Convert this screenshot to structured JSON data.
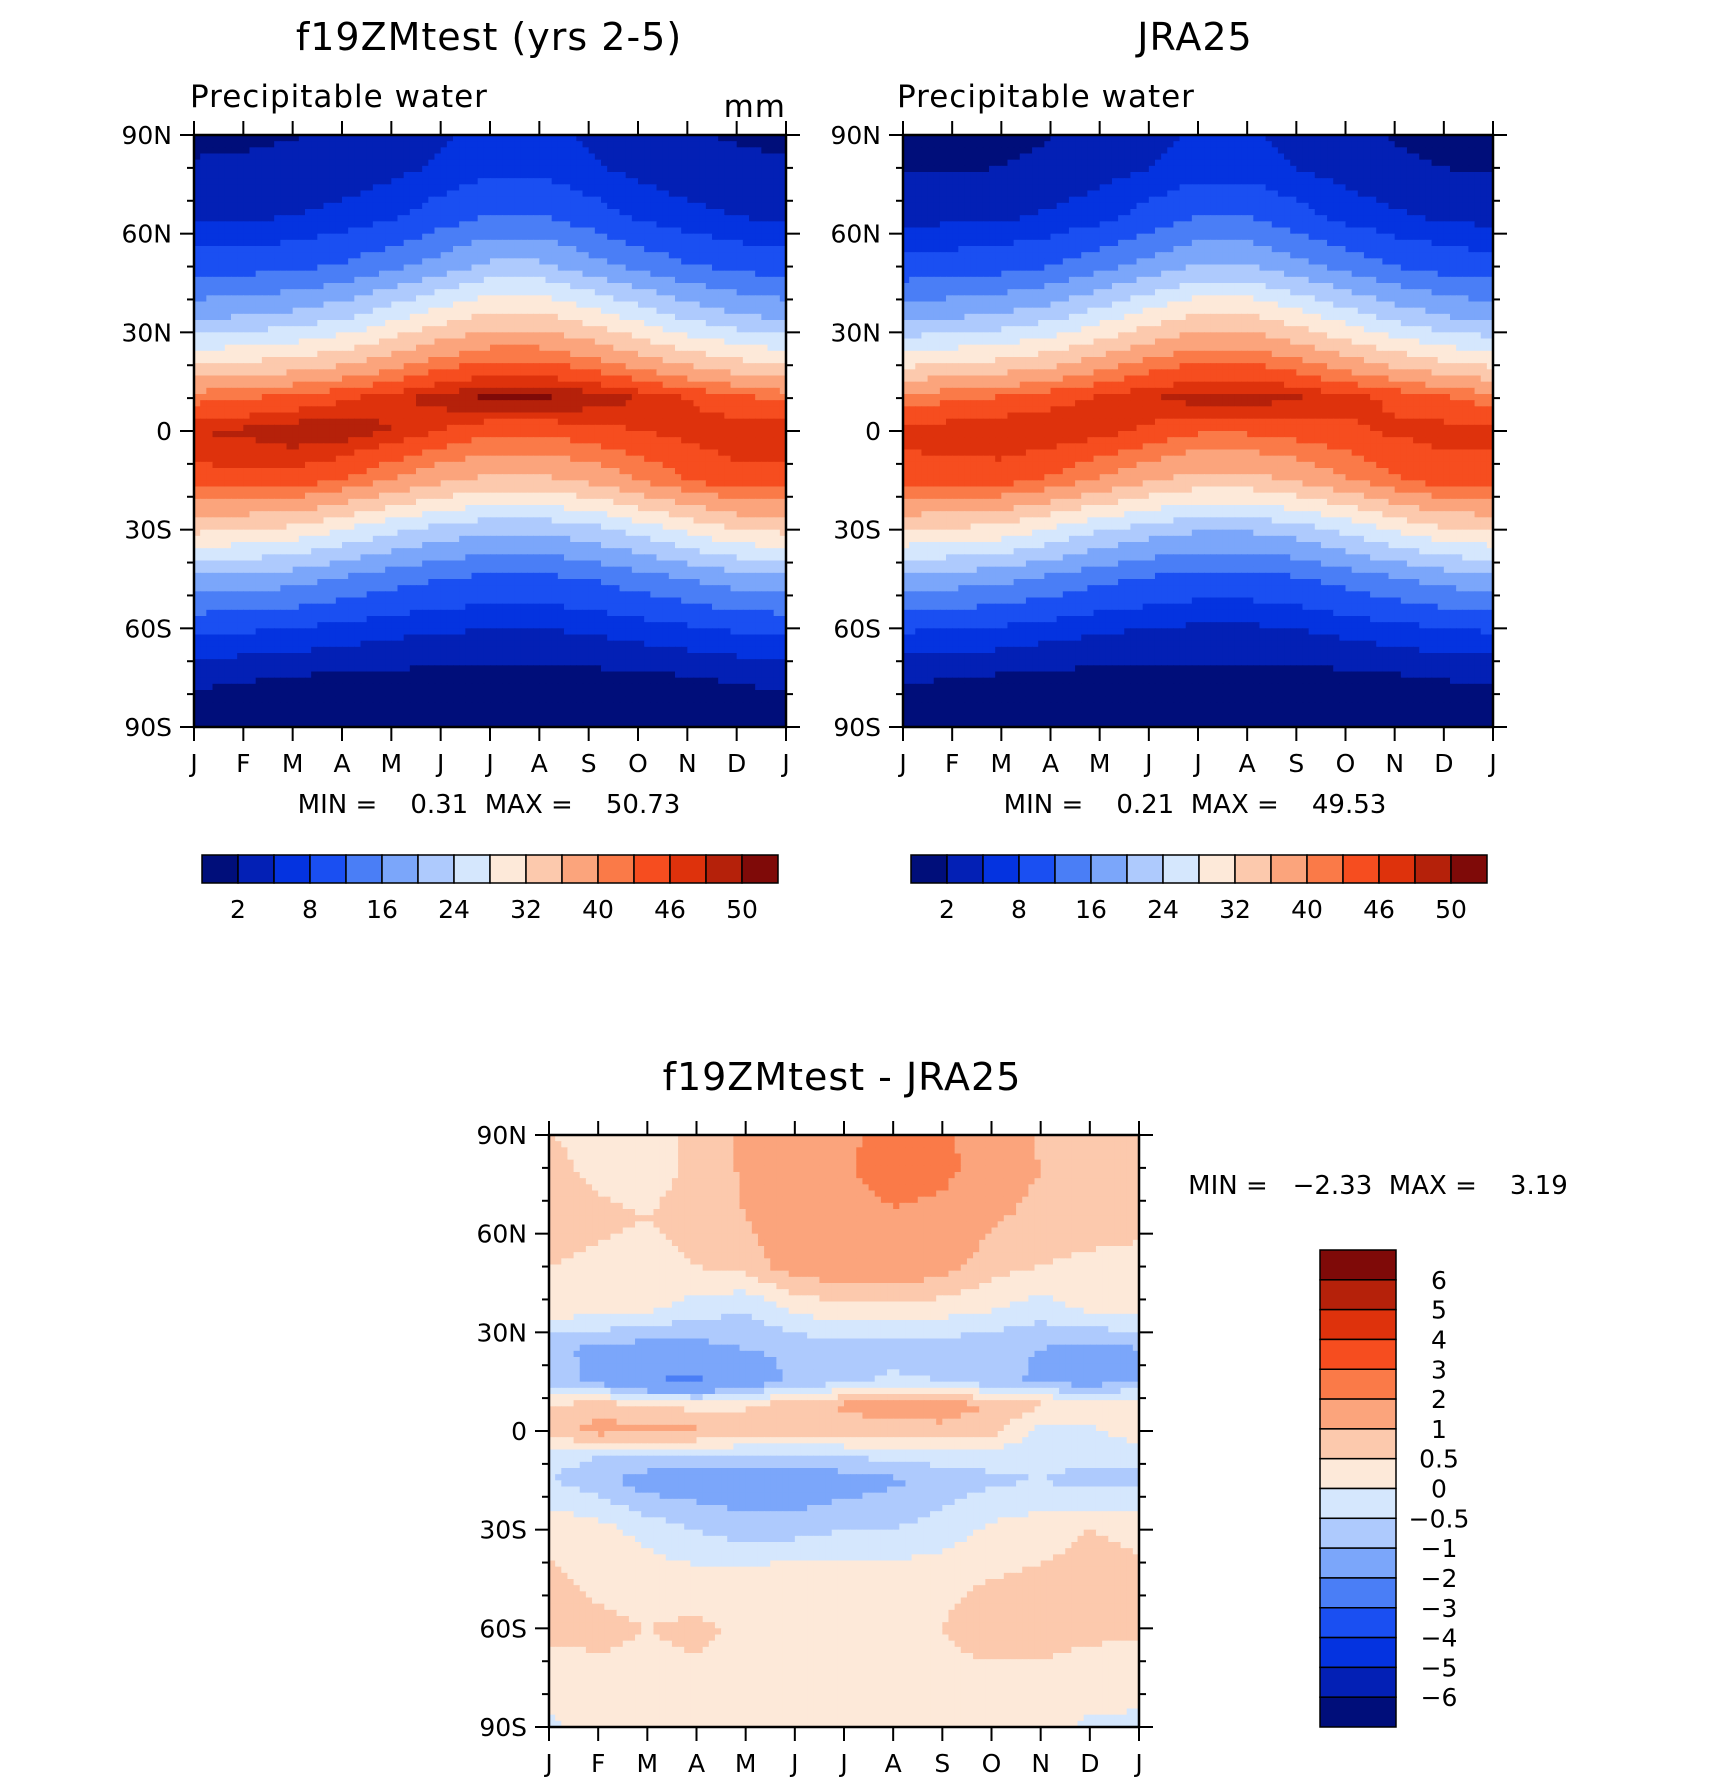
{
  "colors": {
    "abs_levels": [
      "#000e7a",
      "#0320b5",
      "#0433e0",
      "#1a4ff2",
      "#4a7ef6",
      "#7ba6fa",
      "#aecafd",
      "#d5e7fd",
      "#fde9d9",
      "#fcc9ad",
      "#fba47c",
      "#fa7a48",
      "#f64d1f",
      "#de320c",
      "#b5210a",
      "#7f0a08"
    ],
    "diff_levels": [
      "#000e7a",
      "#0320b5",
      "#0433e0",
      "#1a4ff2",
      "#4a7ef6",
      "#7ba6fa",
      "#aecafd",
      "#d5e7fd",
      "#fde9d9",
      "#fcc9ad",
      "#fba47c",
      "#fa7a48",
      "#f64d1f",
      "#de320c",
      "#b5210a",
      "#7f0a08"
    ]
  },
  "chart_data": [
    {
      "type": "heatmap",
      "title": "f19ZMtest (yrs 2-5)",
      "subtitle": "Precipitable water",
      "units": "mm",
      "x_tick_labels": [
        "J",
        "F",
        "M",
        "A",
        "M",
        "J",
        "J",
        "A",
        "S",
        "O",
        "N",
        "D",
        "J"
      ],
      "y_tick_labels": [
        "90N",
        "60N",
        "30N",
        "0",
        "30S",
        "60S",
        "90S"
      ],
      "ylim": [
        -90,
        90
      ],
      "min_label": "MIN =",
      "min_value": "0.31",
      "max_label": "MAX =",
      "max_value": "50.73",
      "stat_text": "MIN =    0.31  MAX =    50.73",
      "colorbar_ticks": [
        "2",
        "8",
        "16",
        "24",
        "32",
        "40",
        "46",
        "50"
      ],
      "field": {
        "x_months": [
          0,
          1,
          2,
          3,
          4,
          5,
          6,
          7,
          8,
          9,
          10,
          11,
          12
        ],
        "lat": [
          -90,
          -75,
          -60,
          -45,
          -30,
          -15,
          0,
          10,
          20,
          35,
          50,
          65,
          80,
          90
        ],
        "values": [
          [
            0.4,
            0.4,
            0.4,
            0.4,
            0.3,
            0.3,
            0.3,
            0.3,
            0.3,
            0.4,
            0.4,
            0.4,
            0.4
          ],
          [
            2.5,
            2.2,
            1.8,
            1.4,
            1.2,
            1.0,
            1.0,
            1.0,
            1.1,
            1.3,
            1.8,
            2.3,
            2.5
          ],
          [
            9,
            8.5,
            8,
            7,
            6,
            5.5,
            5,
            5,
            5.5,
            6.5,
            7.5,
            8.5,
            9
          ],
          [
            19,
            18.5,
            17.5,
            15.5,
            13.5,
            12,
            11,
            11,
            12,
            14,
            16,
            18,
            19
          ],
          [
            33,
            32,
            31,
            28,
            25,
            22.5,
            21,
            21,
            22.5,
            25.5,
            29,
            32,
            33
          ],
          [
            45,
            45,
            45,
            43,
            40,
            37,
            35,
            35,
            37,
            40,
            43,
            45,
            45
          ],
          [
            48,
            48.5,
            49.5,
            49.5,
            48,
            46,
            44,
            44,
            45,
            46,
            47,
            47.5,
            48
          ],
          [
            42,
            43,
            44,
            45.5,
            47.5,
            49,
            50.5,
            50.5,
            49.5,
            48,
            46,
            44,
            42
          ],
          [
            32,
            33,
            34,
            36,
            39,
            42,
            44,
            44,
            42,
            39,
            36,
            33.5,
            32
          ],
          [
            19,
            20,
            21,
            23,
            26.5,
            30,
            33,
            33,
            30,
            26.5,
            23,
            20.5,
            19
          ],
          [
            10,
            10.5,
            11,
            12.5,
            15,
            18,
            21,
            21,
            18,
            15,
            12.5,
            11,
            10
          ],
          [
            4.5,
            4.7,
            5,
            6,
            7.5,
            10,
            12.5,
            12.5,
            10,
            7.5,
            6,
            5,
            4.5
          ],
          [
            2.2,
            2.3,
            2.5,
            3,
            4,
            5.5,
            7,
            7,
            5.5,
            4,
            3,
            2.5,
            2.2
          ],
          [
            1.6,
            1.7,
            1.9,
            2.3,
            3,
            4.5,
            6,
            6,
            4.5,
            3,
            2.2,
            1.8,
            1.6
          ]
        ]
      }
    },
    {
      "type": "heatmap",
      "title": "JRA25",
      "subtitle": "Precipitable water",
      "x_tick_labels": [
        "J",
        "F",
        "M",
        "A",
        "M",
        "J",
        "J",
        "A",
        "S",
        "O",
        "N",
        "D",
        "J"
      ],
      "y_tick_labels": [
        "90N",
        "60N",
        "30N",
        "0",
        "30S",
        "60S",
        "90S"
      ],
      "ylim": [
        -90,
        90
      ],
      "min_label": "MIN =",
      "min_value": "0.21",
      "max_label": "MAX =",
      "max_value": "49.53",
      "stat_text": "MIN =    0.21  MAX =    49.53",
      "colorbar_ticks": [
        "2",
        "8",
        "16",
        "24",
        "32",
        "40",
        "46",
        "50"
      ],
      "field": {
        "x_months": [
          0,
          1,
          2,
          3,
          4,
          5,
          6,
          7,
          8,
          9,
          10,
          11,
          12
        ],
        "lat": [
          -90,
          -75,
          -60,
          -45,
          -30,
          -15,
          0,
          10,
          20,
          35,
          50,
          65,
          80,
          90
        ],
        "values": [
          [
            0.3,
            0.3,
            0.3,
            0.3,
            0.2,
            0.2,
            0.2,
            0.2,
            0.2,
            0.3,
            0.3,
            0.3,
            0.3
          ],
          [
            2.3,
            2.0,
            1.6,
            1.2,
            1.0,
            0.9,
            0.9,
            0.9,
            1.0,
            1.2,
            1.6,
            2.1,
            2.3
          ],
          [
            8.5,
            8,
            7.5,
            6.5,
            5.5,
            5,
            4.5,
            4.5,
            5,
            6,
            7,
            8,
            8.5
          ],
          [
            18.5,
            18,
            17,
            15,
            13,
            11.5,
            10.5,
            10.5,
            11.5,
            13.5,
            15.5,
            17.5,
            18.5
          ],
          [
            32.5,
            31.5,
            30.5,
            27.5,
            24.5,
            22,
            20.5,
            20.5,
            22,
            25,
            28.5,
            31.5,
            32.5
          ],
          [
            44.5,
            44.5,
            44.5,
            42.5,
            39.5,
            36.5,
            34.5,
            34.5,
            36.5,
            39.5,
            42.5,
            44.5,
            44.5
          ],
          [
            47,
            47.5,
            48,
            48,
            47,
            45.5,
            43.5,
            43.5,
            44.5,
            45.5,
            46.5,
            47,
            47
          ],
          [
            41.5,
            42.5,
            43.5,
            45,
            46.5,
            48,
            49,
            49,
            48.5,
            47,
            45.5,
            43.5,
            41.5
          ],
          [
            31.5,
            32.5,
            33.5,
            35.5,
            38.5,
            41.5,
            43.5,
            43.5,
            41.5,
            38.5,
            35.5,
            33,
            31.5
          ],
          [
            18.5,
            19.5,
            20.5,
            22.5,
            26,
            29.5,
            32.5,
            32.5,
            29.5,
            26,
            22.5,
            20,
            18.5
          ],
          [
            9.5,
            10,
            10.5,
            12,
            14.5,
            17.5,
            20.5,
            20.5,
            17.5,
            14.5,
            12,
            10.5,
            9.5
          ],
          [
            4,
            4.2,
            4.5,
            5.5,
            7,
            9.5,
            12,
            12,
            9.5,
            7,
            5.5,
            4.5,
            4
          ],
          [
            1.7,
            1.8,
            2,
            2.5,
            3.5,
            5,
            6.5,
            6.5,
            5,
            3.5,
            2.5,
            2,
            1.7
          ],
          [
            1.2,
            1.3,
            1.5,
            1.9,
            2.6,
            4,
            5.5,
            5.5,
            4,
            2.6,
            1.8,
            1.4,
            1.2
          ]
        ]
      }
    },
    {
      "type": "heatmap",
      "title": "f19ZMtest - JRA25",
      "x_tick_labels": [
        "J",
        "F",
        "M",
        "A",
        "M",
        "J",
        "J",
        "A",
        "S",
        "O",
        "N",
        "D",
        "J"
      ],
      "y_tick_labels": [
        "90N",
        "60N",
        "30N",
        "0",
        "30S",
        "60S",
        "90S"
      ],
      "ylim": [
        -90,
        90
      ],
      "min_label": "MIN =",
      "min_value": "-2.33",
      "max_label": "MAX =",
      "max_value": "3.19",
      "stat_text": "MIN =   −2.33  MAX =    3.19",
      "colorbar_ticks": [
        "6",
        "5",
        "4",
        "3",
        "2",
        "1",
        "0.5",
        "0",
        "−0.5",
        "−1",
        "−2",
        "−3",
        "−4",
        "−5",
        "−6"
      ],
      "field": {
        "x_months": [
          0,
          1,
          2,
          3,
          4,
          5,
          6,
          7,
          8,
          9,
          10,
          11,
          12
        ],
        "lat": [
          -90,
          -75,
          -60,
          -45,
          -30,
          -15,
          -8,
          0,
          8,
          15,
          25,
          38,
          50,
          65,
          80,
          90
        ],
        "values": [
          [
            -0.1,
            0.2,
            0.3,
            0.3,
            0.3,
            0.3,
            0.3,
            0.3,
            0.3,
            0.3,
            0.2,
            -0.1,
            -0.1
          ],
          [
            0.3,
            0.4,
            0.4,
            0.4,
            0.4,
            0.4,
            0.4,
            0.3,
            0.4,
            0.4,
            0.4,
            0.3,
            0.2
          ],
          [
            0.6,
            0.6,
            0.5,
            0.6,
            0.4,
            0.4,
            0.4,
            0.4,
            0.5,
            0.7,
            0.7,
            0.6,
            0.6
          ],
          [
            0.6,
            0.4,
            0.3,
            0.2,
            0.3,
            0.4,
            0.3,
            0.3,
            0.4,
            0.5,
            0.6,
            0.7,
            0.6
          ],
          [
            0.4,
            0.2,
            -0.2,
            -0.5,
            -0.8,
            -0.7,
            -0.5,
            -0.5,
            -0.3,
            0.1,
            0.3,
            0.5,
            0.4
          ],
          [
            -0.5,
            -0.8,
            -1.3,
            -1.4,
            -1.4,
            -1.5,
            -1.3,
            -1.1,
            -0.8,
            -0.6,
            -0.5,
            -0.7,
            -0.7
          ],
          [
            -0.3,
            -0.5,
            -0.6,
            -0.6,
            -0.7,
            -0.6,
            -0.5,
            -0.4,
            -0.3,
            -0.3,
            -0.3,
            -0.4,
            -0.3
          ],
          [
            0.8,
            1.2,
            1.2,
            1.1,
            0.9,
            0.8,
            0.7,
            0.8,
            0.9,
            0.7,
            -0.2,
            -0.1,
            0.3
          ],
          [
            0.5,
            0.7,
            0.5,
            0.3,
            0.4,
            0.8,
            1.1,
            1.3,
            1.2,
            1.0,
            0.6,
            0.4,
            0.4
          ],
          [
            -0.8,
            -1.1,
            -2.0,
            -2.2,
            -1.4,
            -0.9,
            -0.6,
            -0.4,
            -0.5,
            -0.8,
            -1.1,
            -1.3,
            -1.0
          ],
          [
            -0.9,
            -1.1,
            -1.3,
            -1.2,
            -1.0,
            -0.9,
            -0.7,
            -0.7,
            -0.8,
            -0.9,
            -1.0,
            -1.2,
            -1.0
          ],
          [
            0.4,
            0.3,
            0.2,
            -0.2,
            -0.4,
            0.2,
            0.4,
            0.4,
            0.3,
            0.1,
            -0.2,
            0.2,
            0.3
          ],
          [
            0.5,
            0.4,
            0.3,
            0.5,
            0.7,
            1.3,
            1.4,
            1.6,
            1.2,
            0.7,
            0.5,
            0.4,
            0.4
          ],
          [
            0.7,
            0.6,
            0.5,
            0.7,
            1.0,
            1.5,
            1.7,
            1.9,
            1.7,
            1.1,
            0.8,
            0.7,
            0.6
          ],
          [
            0.6,
            0.4,
            0.3,
            0.6,
            1.1,
            1.5,
            1.9,
            2.4,
            2.3,
            1.5,
            1.0,
            0.8,
            0.6
          ],
          [
            0.5,
            0.4,
            0.3,
            0.6,
            1.1,
            1.4,
            1.8,
            2.3,
            2.2,
            1.4,
            0.9,
            0.7,
            0.5
          ]
        ]
      }
    }
  ]
}
